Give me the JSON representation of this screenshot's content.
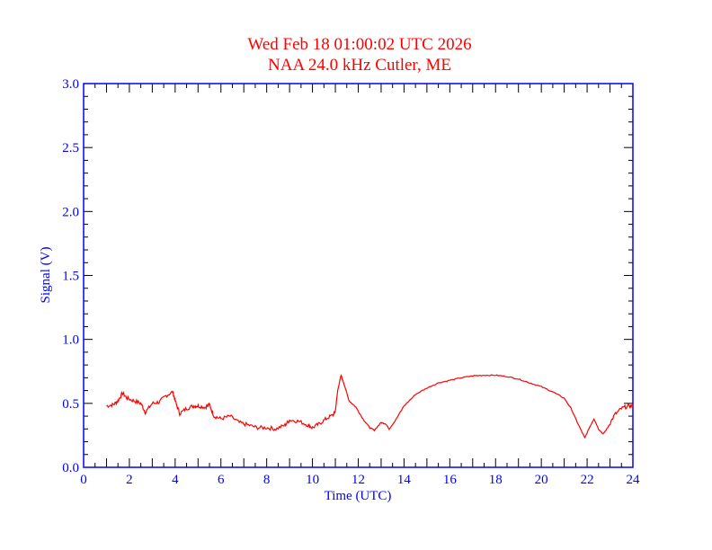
{
  "chart_data": {
    "type": "line",
    "title": "Wed Feb 18 01:00:02 UTC 2026",
    "subtitle": "NAA 24.0 kHz Cutler, ME",
    "xlabel": "Time (UTC)",
    "ylabel": "Signal (V)",
    "xlim": [
      0,
      24
    ],
    "ylim": [
      0,
      3.0
    ],
    "xticks": [
      "0",
      "2",
      "4",
      "6",
      "8",
      "10",
      "12",
      "14",
      "16",
      "18",
      "20",
      "22",
      "24"
    ],
    "yticks": [
      "0.0",
      "0.5",
      "1.0",
      "1.5",
      "2.0",
      "2.5",
      "3.0"
    ],
    "grid": false,
    "colors": {
      "axis": "#0000ff",
      "title": "#ff0000",
      "line": "#ff0000",
      "minor_ticks": "#000000"
    },
    "series": [
      {
        "name": "Signal",
        "x": [
          1.0,
          1.3,
          1.5,
          1.7,
          1.9,
          2.2,
          2.5,
          2.7,
          3.0,
          3.3,
          3.6,
          3.9,
          4.0,
          4.2,
          4.5,
          4.8,
          5.0,
          5.3,
          5.5,
          5.7,
          6.0,
          6.4,
          6.8,
          7.2,
          7.6,
          8.0,
          8.4,
          8.8,
          9.0,
          9.4,
          9.8,
          10.0,
          10.3,
          10.6,
          10.9,
          11.0,
          11.1,
          11.25,
          11.4,
          11.6,
          11.9,
          12.2,
          12.5,
          12.7,
          13.0,
          13.2,
          13.35,
          13.6,
          14.0,
          14.5,
          15.0,
          15.5,
          16.0,
          16.5,
          17.0,
          17.5,
          18.0,
          18.5,
          19.0,
          19.5,
          20.0,
          20.5,
          21.0,
          21.3,
          21.6,
          21.9,
          22.1,
          22.3,
          22.5,
          22.7,
          22.9,
          23.2,
          23.5,
          23.8,
          24.0
        ],
        "y": [
          0.48,
          0.49,
          0.52,
          0.58,
          0.54,
          0.52,
          0.5,
          0.43,
          0.5,
          0.51,
          0.56,
          0.59,
          0.52,
          0.42,
          0.46,
          0.48,
          0.48,
          0.47,
          0.49,
          0.4,
          0.38,
          0.4,
          0.35,
          0.33,
          0.31,
          0.31,
          0.3,
          0.33,
          0.37,
          0.36,
          0.33,
          0.31,
          0.34,
          0.38,
          0.41,
          0.44,
          0.6,
          0.72,
          0.64,
          0.52,
          0.47,
          0.38,
          0.31,
          0.29,
          0.35,
          0.34,
          0.3,
          0.36,
          0.48,
          0.57,
          0.62,
          0.66,
          0.68,
          0.7,
          0.715,
          0.72,
          0.72,
          0.71,
          0.69,
          0.66,
          0.63,
          0.59,
          0.54,
          0.46,
          0.34,
          0.23,
          0.31,
          0.38,
          0.3,
          0.26,
          0.31,
          0.41,
          0.46,
          0.48,
          0.48
        ]
      }
    ]
  }
}
